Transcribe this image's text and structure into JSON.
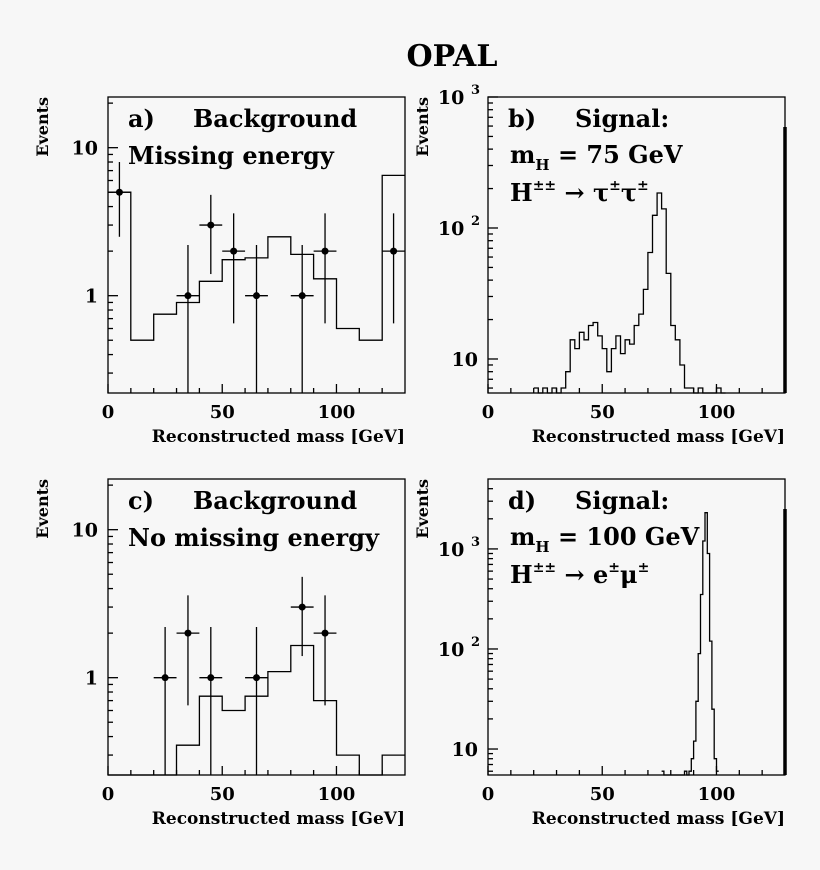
{
  "figure_title": "OPAL",
  "chart_data": [
    {
      "id": "a",
      "type": "step-histogram-with-points",
      "yscale": "log",
      "xlim": [
        0,
        130
      ],
      "ylim": [
        0.22,
        22
      ],
      "xticks": [
        0,
        50,
        100
      ],
      "yticks": [
        {
          "value": 1,
          "label": "1"
        },
        {
          "value": 10,
          "label": "10"
        }
      ],
      "xlabel": "Reconstructed mass [GeV]",
      "ylabel": "Events",
      "tag": "a)",
      "title": "Background",
      "lines": [
        "Missing energy"
      ],
      "hist_edges": [
        0,
        10,
        20,
        30,
        40,
        50,
        60,
        70,
        80,
        90,
        100,
        110,
        120,
        130
      ],
      "hist_values": [
        5.0,
        0.5,
        0.75,
        0.9,
        1.25,
        1.75,
        1.8,
        2.5,
        1.9,
        1.3,
        0.6,
        0.5,
        6.5
      ],
      "points": [
        {
          "x": 5,
          "y": 5,
          "ylo": 2.5,
          "yhi": 8
        },
        {
          "x": 35,
          "y": 1,
          "ylo": 0.2,
          "yhi": 2.2
        },
        {
          "x": 45,
          "y": 3,
          "ylo": 1.4,
          "yhi": 4.8
        },
        {
          "x": 55,
          "y": 2,
          "ylo": 0.65,
          "yhi": 3.6
        },
        {
          "x": 65,
          "y": 1,
          "ylo": 0.2,
          "yhi": 2.2
        },
        {
          "x": 85,
          "y": 1,
          "ylo": 0.2,
          "yhi": 2.2
        },
        {
          "x": 95,
          "y": 2,
          "ylo": 0.65,
          "yhi": 3.6
        },
        {
          "x": 125,
          "y": 2,
          "ylo": 0.65,
          "yhi": 3.6
        }
      ]
    },
    {
      "id": "b",
      "type": "step-histogram",
      "yscale": "log",
      "xlim": [
        0,
        130
      ],
      "ylim": [
        5.5,
        1000
      ],
      "xticks": [
        0,
        50,
        100
      ],
      "yticks": [
        {
          "value": 10,
          "label": "10"
        },
        {
          "value": 100,
          "label": "10^2"
        },
        {
          "value": 1000,
          "label": "10^3"
        }
      ],
      "xlabel": "Reconstructed mass [GeV]",
      "ylabel": "Events",
      "tag": "b)",
      "title": "Signal:",
      "mass_line": {
        "sym": "m",
        "sub": "H",
        "rest": " = 75 GeV"
      },
      "decay": {
        "base": "H",
        "sup": "±±",
        "arrow": " → ",
        "p1": "τ",
        "p2": "τ",
        "sup2": "±"
      },
      "hist_edges": [
        20,
        22,
        24,
        26,
        28,
        30,
        32,
        34,
        36,
        38,
        40,
        42,
        44,
        46,
        48,
        50,
        52,
        54,
        56,
        58,
        60,
        62,
        64,
        66,
        68,
        70,
        72,
        74,
        76,
        78,
        80,
        82,
        84,
        86,
        88,
        90,
        92,
        94,
        96,
        98,
        100,
        102,
        104
      ],
      "hist_values": [
        6,
        0,
        6,
        0,
        6,
        0,
        6,
        8,
        14,
        12,
        16,
        14,
        18,
        19,
        15,
        12,
        8,
        12,
        15,
        11,
        14,
        13,
        18,
        22,
        34,
        65,
        125,
        185,
        140,
        45,
        18,
        14,
        9,
        6,
        6,
        0,
        6,
        0,
        0,
        0,
        6,
        0
      ],
      "right_edge_marker": true
    },
    {
      "id": "c",
      "type": "step-histogram-with-points",
      "yscale": "log",
      "xlim": [
        0,
        130
      ],
      "ylim": [
        0.22,
        22
      ],
      "xticks": [
        0,
        50,
        100
      ],
      "yticks": [
        {
          "value": 1,
          "label": "1"
        },
        {
          "value": 10,
          "label": "10"
        }
      ],
      "xlabel": "Reconstructed mass [GeV]",
      "ylabel": "Events",
      "tag": "c)",
      "title": "Background",
      "lines": [
        "No missing energy"
      ],
      "hist_edges": [
        0,
        10,
        20,
        30,
        40,
        50,
        60,
        70,
        80,
        90,
        100,
        110,
        120,
        130
      ],
      "hist_values": [
        0,
        0,
        0,
        0.35,
        0.75,
        0.6,
        0.75,
        1.1,
        1.65,
        0.7,
        0.3,
        0,
        0.3
      ],
      "points": [
        {
          "x": 25,
          "y": 1,
          "ylo": 0.2,
          "yhi": 2.2
        },
        {
          "x": 35,
          "y": 2,
          "ylo": 0.65,
          "yhi": 3.6
        },
        {
          "x": 45,
          "y": 1,
          "ylo": 0.2,
          "yhi": 2.2
        },
        {
          "x": 65,
          "y": 1,
          "ylo": 0.2,
          "yhi": 2.2
        },
        {
          "x": 85,
          "y": 3,
          "ylo": 1.4,
          "yhi": 4.8
        },
        {
          "x": 95,
          "y": 2,
          "ylo": 0.65,
          "yhi": 3.6
        }
      ]
    },
    {
      "id": "d",
      "type": "step-histogram",
      "yscale": "log",
      "xlim": [
        0,
        130
      ],
      "ylim": [
        5.5,
        5000
      ],
      "xticks": [
        0,
        50,
        100
      ],
      "yticks": [
        {
          "value": 10,
          "label": "10"
        },
        {
          "value": 100,
          "label": "10^2"
        },
        {
          "value": 1000,
          "label": "10^3"
        }
      ],
      "xlabel": "Reconstructed mass [GeV]",
      "ylabel": "Events",
      "tag": "d)",
      "title": "Signal:",
      "mass_line": {
        "sym": "m",
        "sub": "H",
        "rest": " = 100 GeV"
      },
      "decay": {
        "base": "H",
        "sup": "±±",
        "arrow": " → ",
        "p1": "e",
        "p2": "μ",
        "sup2": "±"
      },
      "hist_edges": [
        76,
        77,
        78,
        79,
        80,
        81,
        82,
        83,
        84,
        85,
        86,
        87,
        88,
        89,
        90,
        91,
        92,
        93,
        94,
        95,
        96,
        97,
        98,
        99,
        100,
        101
      ],
      "hist_values": [
        6,
        0,
        0,
        0,
        0,
        0,
        0,
        0,
        0,
        0,
        6,
        0,
        6,
        8,
        12,
        30,
        90,
        350,
        1200,
        2300,
        900,
        120,
        25,
        8,
        6
      ],
      "right_edge_marker": true
    }
  ]
}
